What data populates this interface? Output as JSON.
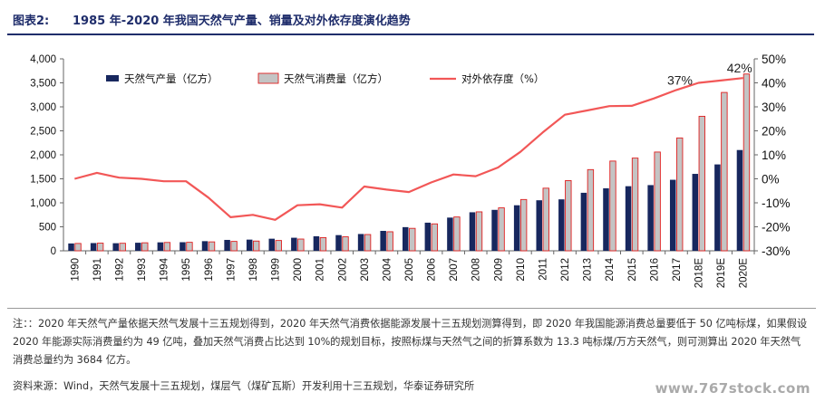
{
  "figure": {
    "label": "图表2:",
    "title": "1985 年-2020 年我国天然气产量、销量及对外依存度演化趋势"
  },
  "chart_data": {
    "type": "bar",
    "categories": [
      "1990",
      "1991",
      "1992",
      "1993",
      "1994",
      "1995",
      "1996",
      "1997",
      "1998",
      "1999",
      "2000",
      "2001",
      "2002",
      "2003",
      "2004",
      "2005",
      "2006",
      "2007",
      "2008",
      "2009",
      "2010",
      "2011",
      "2012",
      "2013",
      "2014",
      "2015",
      "2016",
      "2017",
      "2018E",
      "2019E",
      "2020E"
    ],
    "series": [
      {
        "name": "天然气产量（亿方）",
        "kind": "bar",
        "axis": "left",
        "color": "#17275e",
        "values": [
          153,
          161,
          158,
          168,
          176,
          179,
          201,
          227,
          233,
          252,
          272,
          303,
          327,
          350,
          415,
          493,
          586,
          692,
          803,
          853,
          949,
          1053,
          1072,
          1209,
          1302,
          1346,
          1369,
          1480,
          1603,
          1800,
          2100
        ]
      },
      {
        "name": "天然气消费量（亿方）",
        "kind": "bar",
        "axis": "left",
        "color": "#c4c4c4",
        "edge": "#e02020",
        "values": [
          153,
          160,
          157,
          167,
          174,
          177,
          186,
          196,
          203,
          215,
          245,
          274,
          292,
          339,
          397,
          468,
          561,
          705,
          812,
          895,
          1069,
          1305,
          1463,
          1692,
          1870,
          1932,
          2058,
          2352,
          2803,
          3300,
          3684
        ]
      },
      {
        "name": "对外依存度（%）",
        "kind": "line",
        "axis": "right",
        "color": "#f25757",
        "values": [
          0,
          2.5,
          0.5,
          0,
          -1,
          -1,
          -7.8,
          -16,
          -15,
          -17.1,
          -11,
          -10.6,
          -12,
          -3.2,
          -4.5,
          -5.5,
          -1.5,
          1.8,
          1.1,
          4.7,
          11.2,
          19.3,
          26.7,
          28.5,
          30.3,
          30.4,
          33.5,
          37,
          40,
          41,
          42
        ]
      }
    ],
    "ylim_left": [
      0,
      4000
    ],
    "ylim_right": [
      -30,
      50
    ],
    "yticks_left": [
      "0",
      "500",
      "1,000",
      "1,500",
      "2,000",
      "2,500",
      "3,000",
      "3,500",
      "4,000"
    ],
    "yticks_right": [
      "-30%",
      "-20%",
      "-10%",
      "0%",
      "10%",
      "20%",
      "30%",
      "40%",
      "50%"
    ],
    "annotations": [
      {
        "category": "2017",
        "text": "37%"
      },
      {
        "category": "2020E",
        "text": "42%"
      }
    ],
    "legend_position": "top-left",
    "grid": false
  },
  "notes": {
    "text": "注：：2020 年天然气产量依据天然气发展十三五规划得到，2020 年天然气消费依据能源发展十三五规划测算得到，即 2020 年我国能源消费总量要低于 50 亿吨标煤，如果假设 2020 年能源实际消费量约为 49 亿吨，叠加天然气消费占比达到 10%的规划目标，按照标煤与天然气之间的折算系数为 13.3 吨标煤/万方天然气，则可测算出 2020 年天然气消费总量约为 3684 亿方。",
    "source": "资料来源：Wind，天然气发展十三五规划，煤层气（煤矿瓦斯）开发利用十三五规划，华泰证券研究所"
  },
  "watermark": "www.767stock.com"
}
